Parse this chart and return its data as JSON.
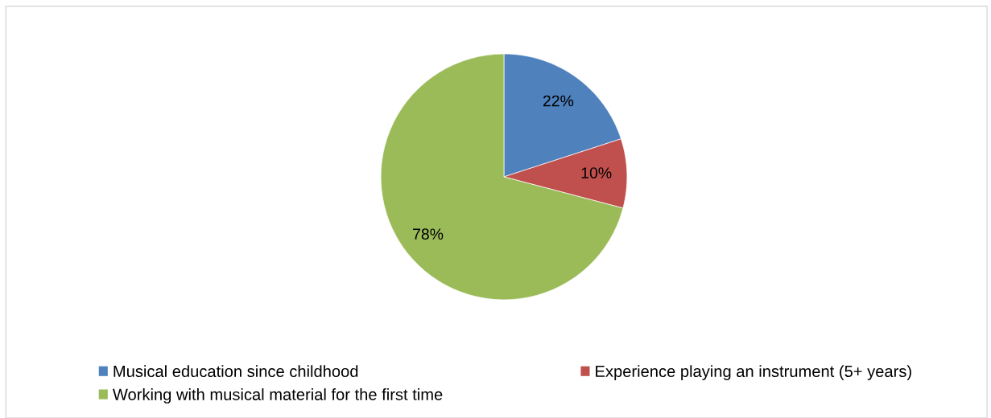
{
  "chart_data": {
    "type": "pie",
    "categories": [
      "Musical education since childhood",
      "Experience playing an instrument (5+ years)",
      "Working with musical material for the first time"
    ],
    "values": [
      22,
      10,
      78
    ],
    "colors": [
      "#4f81bd",
      "#c0504d",
      "#9bbb59"
    ],
    "value_labels": [
      "22%",
      "10%",
      "78%"
    ],
    "legend": "bottom"
  }
}
